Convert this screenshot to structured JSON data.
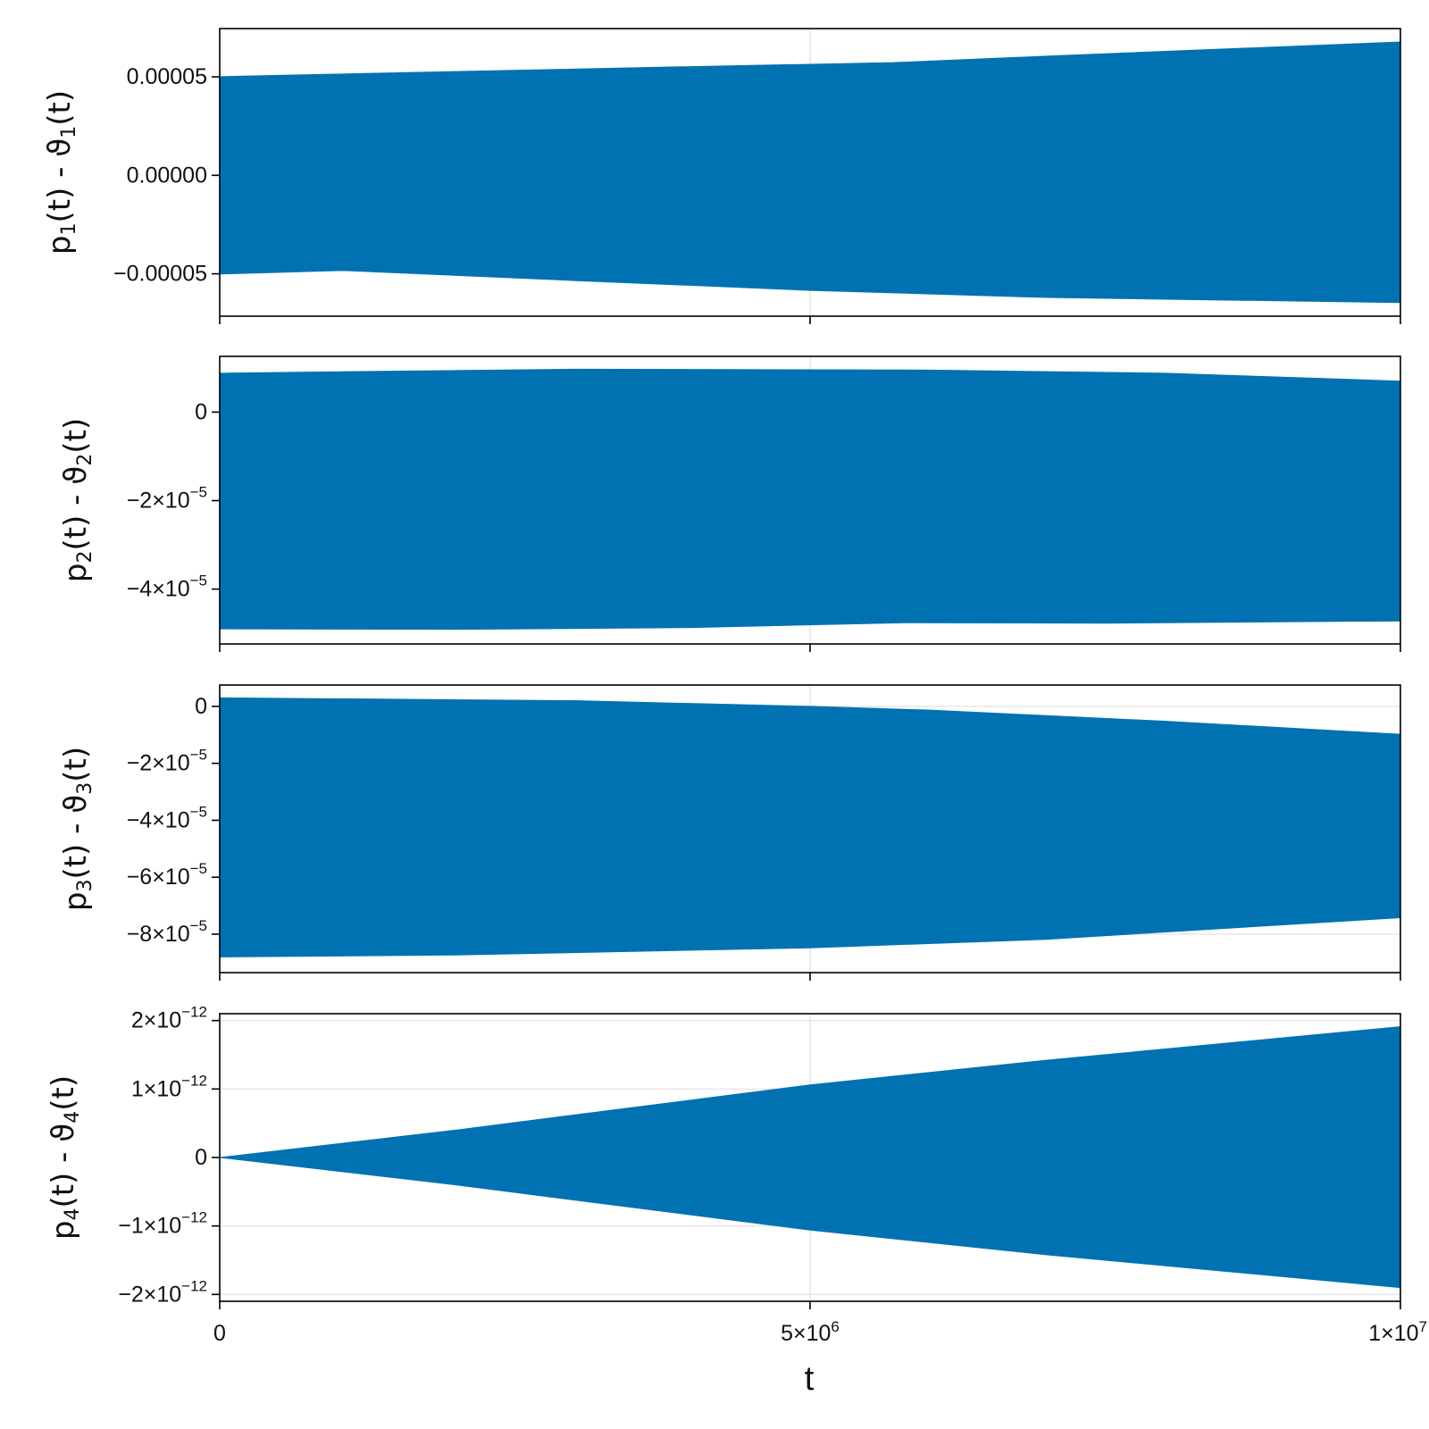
{
  "colors": {
    "series": "#0072b2",
    "grid": "#e6e6e6",
    "frame": "#000000"
  },
  "chart_data": [
    {
      "type": "area",
      "ylabel": {
        "base": "p",
        "sub": "1",
        "mid": "(t) - ϑ",
        "sub2": "1",
        "end": "(t)"
      },
      "ylim": [
        -7.15e-05,
        7.45e-05
      ],
      "yticks": [
        {
          "value": 5e-05,
          "mant": "0.00005",
          "exp": ""
        },
        {
          "value": 0,
          "mant": "0.00000",
          "exp": ""
        },
        {
          "value": -5e-05,
          "mant": "−0.00005",
          "exp": ""
        }
      ],
      "grid_y": false,
      "upper": [
        [
          0,
          5.01e-05
        ],
        [
          2000000,
          5.27e-05
        ],
        [
          4000000,
          5.52e-05
        ],
        [
          5700000,
          5.72e-05
        ],
        [
          7000000,
          6.05e-05
        ],
        [
          10000000,
          6.77e-05
        ]
      ],
      "lower": [
        [
          0,
          -5.01e-05
        ],
        [
          1050000,
          -4.83e-05
        ],
        [
          3000000,
          -5.34e-05
        ],
        [
          5000000,
          -5.84e-05
        ],
        [
          7000000,
          -6.2e-05
        ],
        [
          10000000,
          -6.46e-05
        ]
      ]
    },
    {
      "type": "area",
      "ylabel": {
        "base": "p",
        "sub": "2",
        "mid": "(t) - ϑ",
        "sub2": "2",
        "end": "(t)"
      },
      "ylim": [
        -5.24e-05,
        1.26e-05
      ],
      "yticks": [
        {
          "value": 0,
          "mant": "0",
          "exp": ""
        },
        {
          "value": -2e-05,
          "mant": "−2×10",
          "exp": "−5"
        },
        {
          "value": -4e-05,
          "mant": "−4×10",
          "exp": "−5"
        }
      ],
      "grid_y": false,
      "upper": [
        [
          0,
          8.8e-06
        ],
        [
          3000000,
          9.7e-06
        ],
        [
          6000000,
          9.5e-06
        ],
        [
          8000000,
          8.8e-06
        ],
        [
          10000000,
          7e-06
        ]
      ],
      "lower": [
        [
          0,
          -4.9e-05
        ],
        [
          2000000,
          -4.91e-05
        ],
        [
          4000000,
          -4.87e-05
        ],
        [
          5800000,
          -4.76e-05
        ],
        [
          7500000,
          -4.77e-05
        ],
        [
          10000000,
          -4.72e-05
        ]
      ]
    },
    {
      "type": "area",
      "ylabel": {
        "base": "p",
        "sub": "3",
        "mid": "(t) - ϑ",
        "sub2": "3",
        "end": "(t)"
      },
      "ylim": [
        -9.35e-05,
        7.5e-06
      ],
      "yticks": [
        {
          "value": 0,
          "mant": "0",
          "exp": ""
        },
        {
          "value": -2e-05,
          "mant": "−2×10",
          "exp": "−5"
        },
        {
          "value": -4e-05,
          "mant": "−4×10",
          "exp": "−5"
        },
        {
          "value": -6e-05,
          "mant": "−6×10",
          "exp": "−5"
        },
        {
          "value": -8e-05,
          "mant": "−8×10",
          "exp": "−5"
        }
      ],
      "grid_y": true,
      "upper": [
        [
          0,
          3e-06
        ],
        [
          3000000,
          2e-06
        ],
        [
          5000000,
          0.0
        ],
        [
          6000000,
          -1.3e-06
        ],
        [
          8000000,
          -5.2e-06
        ],
        [
          10000000,
          -9.8e-06
        ]
      ],
      "lower": [
        [
          0,
          -8.8e-05
        ],
        [
          2000000,
          -8.73e-05
        ],
        [
          5000000,
          -8.48e-05
        ],
        [
          7000000,
          -8.18e-05
        ],
        [
          10000000,
          -7.42e-05
        ]
      ]
    },
    {
      "type": "area",
      "ylabel": {
        "base": "p",
        "sub": "4",
        "mid": "(t) - ϑ",
        "sub2": "4",
        "end": "(t)"
      },
      "ylim": [
        -2.1e-12,
        2.1e-12
      ],
      "yticks": [
        {
          "value": 2e-12,
          "mant": "2×10",
          "exp": "−12"
        },
        {
          "value": 1e-12,
          "mant": "1×10",
          "exp": "−12"
        },
        {
          "value": 0,
          "mant": "0",
          "exp": ""
        },
        {
          "value": -1e-12,
          "mant": "−1×10",
          "exp": "−12"
        },
        {
          "value": -2e-12,
          "mant": "−2×10",
          "exp": "−12"
        }
      ],
      "grid_y": true,
      "upper": [
        [
          0,
          0
        ],
        [
          2000000,
          4e-13
        ],
        [
          5000000,
          1.06e-12
        ],
        [
          7000000,
          1.42e-12
        ],
        [
          10000000,
          1.91e-12
        ]
      ],
      "lower": [
        [
          0,
          0
        ],
        [
          2000000,
          -4e-13
        ],
        [
          5000000,
          -1.06e-12
        ],
        [
          7000000,
          -1.42e-12
        ],
        [
          10000000,
          -1.9e-12
        ]
      ]
    }
  ],
  "x_axis": {
    "label": "t",
    "xlim": [
      0,
      10000000
    ],
    "ticks": [
      {
        "value": 0,
        "mant": "0",
        "exp": ""
      },
      {
        "value": 5000000,
        "mant": "5×10",
        "exp": "6"
      },
      {
        "value": 10000000,
        "mant": "1×10",
        "exp": "7"
      }
    ],
    "grid_x": true
  }
}
